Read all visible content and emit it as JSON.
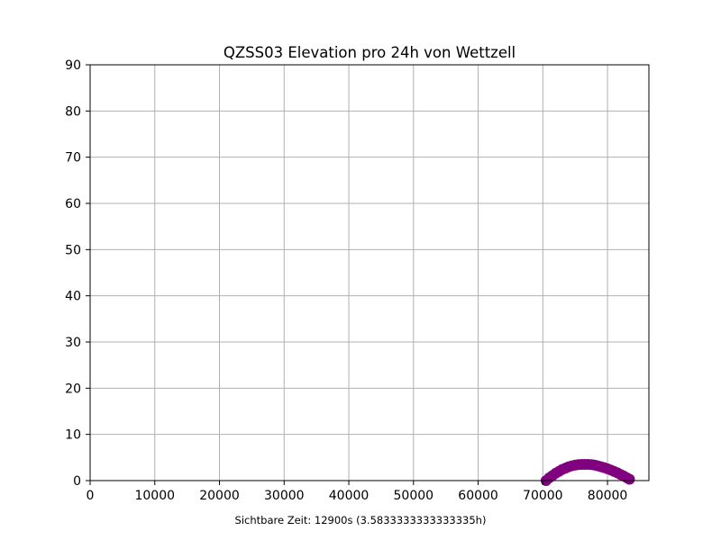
{
  "chart_data": {
    "type": "scatter",
    "title": "QZSS03 Elevation pro 24h von Wettzell",
    "xlabel": "Sichtbare Zeit: 12900s (3.5833333333333335h)",
    "ylabel": "",
    "xlim": [
      0,
      86400
    ],
    "ylim": [
      0,
      90
    ],
    "xticks": [
      0,
      10000,
      20000,
      30000,
      40000,
      50000,
      60000,
      70000,
      80000
    ],
    "yticks": [
      0,
      10,
      20,
      30,
      40,
      50,
      60,
      70,
      80,
      90
    ],
    "grid": true,
    "marker_color": "#800080",
    "series": [
      {
        "x": [
          70500,
          71000,
          71500,
          72000,
          72500,
          73000,
          73500,
          74000,
          74500,
          75000,
          75500,
          76000,
          76500,
          77000,
          77500,
          78000,
          78500,
          79000,
          79500,
          80000,
          80500,
          81000,
          81500,
          82000,
          82500,
          83000,
          83400
        ],
        "values": [
          0.0,
          0.6,
          1.1,
          1.6,
          2.0,
          2.4,
          2.7,
          3.0,
          3.2,
          3.35,
          3.45,
          3.5,
          3.5,
          3.5,
          3.45,
          3.35,
          3.2,
          3.0,
          2.8,
          2.55,
          2.3,
          2.0,
          1.7,
          1.35,
          1.0,
          0.6,
          0.3
        ]
      }
    ]
  }
}
